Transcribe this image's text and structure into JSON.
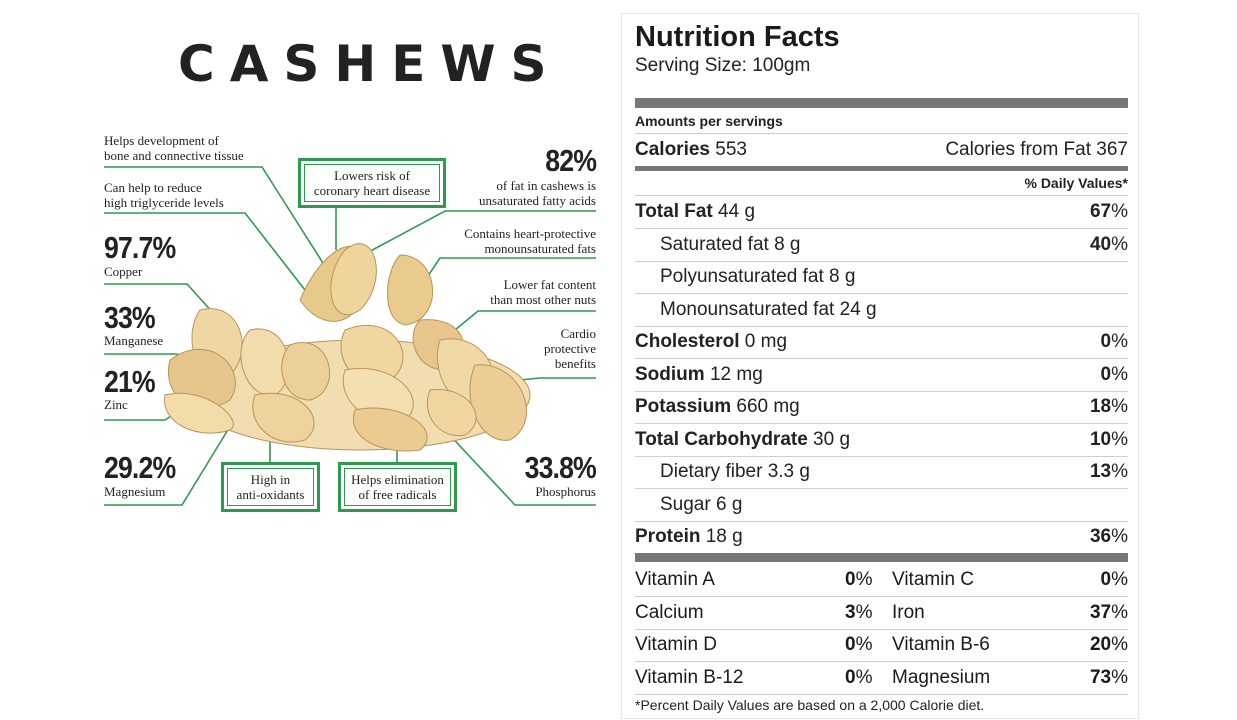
{
  "infographic": {
    "title": "CASHEWS",
    "annotations": {
      "bone": [
        "Helps development of",
        "bone and connective tissue"
      ],
      "trig": [
        "Can help to reduce",
        "high triglyceride levels"
      ],
      "heart_pct": "82%",
      "heart_pct_text": [
        "of fat in cashews is",
        "unsaturated fatty acids"
      ],
      "mono": [
        "Contains heart-protective",
        "monounsaturated fats"
      ],
      "lowfat": [
        "Lower fat content",
        "than most other nuts"
      ],
      "cardio": [
        "Cardio",
        "protective",
        "benefits"
      ]
    },
    "boxes": {
      "coronary": [
        "Lowers risk of",
        "coronary heart disease"
      ],
      "antiox": [
        "High in",
        "anti-oxidants"
      ],
      "radicals": [
        "Helps elimination",
        "of free radicals"
      ]
    },
    "stats": [
      {
        "value": "97.7%",
        "label": "Copper"
      },
      {
        "value": "33%",
        "label": "Manganese"
      },
      {
        "value": "21%",
        "label": "Zinc"
      },
      {
        "value": "29.2%",
        "label": "Magnesium"
      },
      {
        "value": "33.8%",
        "label": "Phosphorus"
      }
    ]
  },
  "nutrition": {
    "title": "Nutrition Facts",
    "serving": "Serving Size: 100gm",
    "amounts_header": "Amounts per servings",
    "calories_label": "Calories",
    "calories_value": "553",
    "calories_fat": "Calories from Fat 367",
    "dv_header": "% Daily Values*",
    "rows": [
      {
        "bold": "Total Fat",
        "rest": " 44 g",
        "pct_num": "67",
        "pct_sign": "%"
      },
      {
        "bold": "",
        "rest": "Saturated fat 8 g",
        "pct_num": "40",
        "pct_sign": "%"
      },
      {
        "bold": "",
        "rest": "Polyunsaturated fat 8 g",
        "pct_num": "",
        "pct_sign": ""
      },
      {
        "bold": "",
        "rest": "Monounsaturated fat 24 g",
        "pct_num": "",
        "pct_sign": ""
      },
      {
        "bold": "Cholesterol",
        "rest": " 0 mg",
        "pct_num": "0",
        "pct_sign": "%"
      },
      {
        "bold": "Sodium",
        "rest": " 12 mg",
        "pct_num": "0",
        "pct_sign": "%"
      },
      {
        "bold": "Potassium",
        "rest": " 660 mg",
        "pct_num": "18",
        "pct_sign": "%"
      },
      {
        "bold": "Total Carbohydrate",
        "rest": " 30 g",
        "pct_num": "10",
        "pct_sign": "%"
      },
      {
        "bold": "",
        "rest": "Dietary fiber 3.3 g",
        "pct_num": "13",
        "pct_sign": "%"
      },
      {
        "bold": "",
        "rest": "Sugar 6 g",
        "pct_num": "",
        "pct_sign": ""
      },
      {
        "bold": "Protein",
        "rest": " 18 g",
        "pct_num": "36",
        "pct_sign": "%"
      }
    ],
    "vitamins": [
      {
        "n1": "Vitamin A",
        "p1": "0",
        "n2": "Vitamin C",
        "p2": "0"
      },
      {
        "n1": "Calcium",
        "p1": "3",
        "n2": "Iron",
        "p2": "37"
      },
      {
        "n1": "Vitamin D",
        "p1": "0",
        "n2": "Vitamin B-6",
        "p2": "20"
      },
      {
        "n1": "Vitamin B-12",
        "p1": "0",
        "n2": "Magnesium",
        "p2": "73"
      }
    ],
    "footnote": "*Percent Daily Values are based on a 2,000 Calorie diet."
  }
}
